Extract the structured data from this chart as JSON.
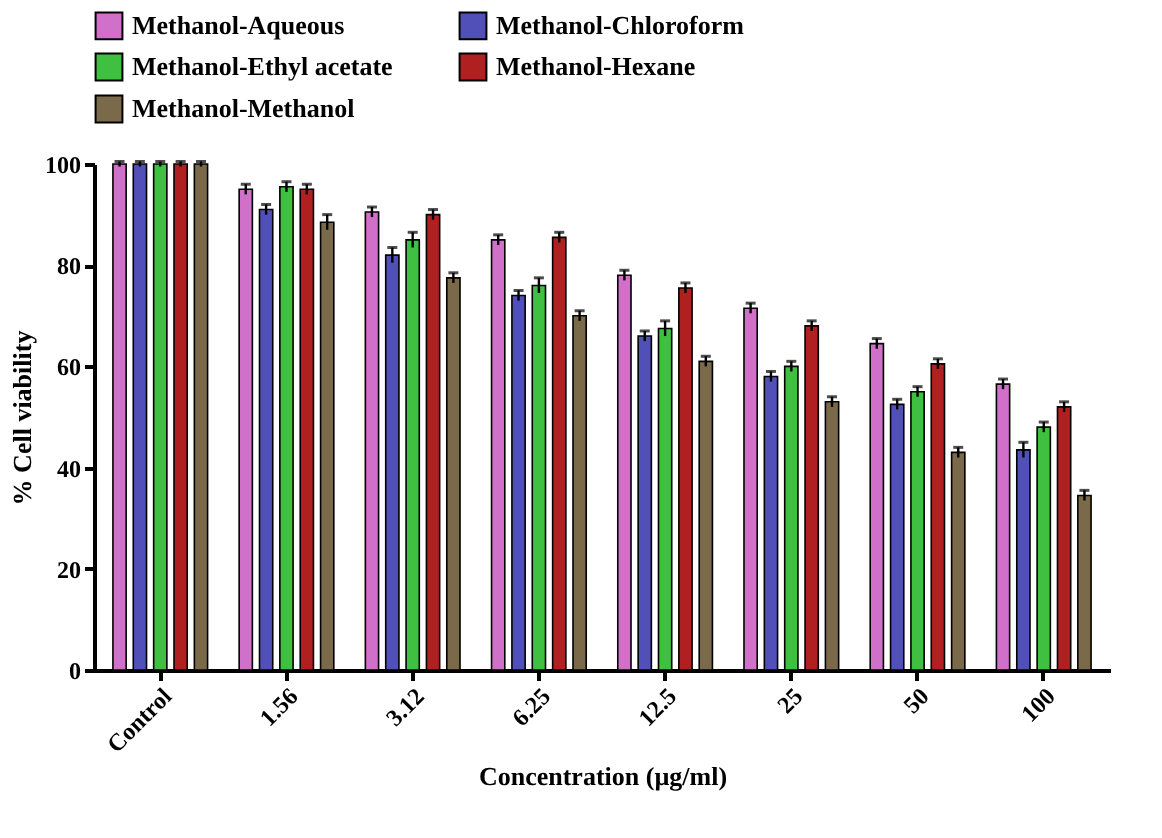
{
  "chart_data": {
    "type": "bar",
    "xlabel": "Concentration (µg/ml)",
    "ylabel": "% Cell viability",
    "categories": [
      "Control",
      "1.56",
      "3.12",
      "6.25",
      "12.5",
      "25",
      "50",
      "100"
    ],
    "series": [
      {
        "name": "Methanol-Aqueous",
        "color": "#d070c8",
        "values": [
          100,
          95,
          90.5,
          85,
          78,
          71.5,
          64.5,
          56.5
        ],
        "errors": [
          0.5,
          1,
          1,
          1,
          1,
          1,
          1,
          1
        ]
      },
      {
        "name": "Methanol-Chloroform",
        "color": "#5050b8",
        "values": [
          100,
          91,
          82,
          74,
          66,
          58,
          52.5,
          43.5
        ],
        "errors": [
          0.5,
          1,
          1.5,
          1,
          1,
          1,
          1,
          1.5
        ]
      },
      {
        "name": "Methanol-Ethyl acetate",
        "color": "#40c040",
        "values": [
          100,
          95.5,
          85,
          76,
          67.5,
          60,
          55,
          48
        ],
        "errors": [
          0.5,
          1,
          1.5,
          1.5,
          1.5,
          1,
          1,
          1
        ]
      },
      {
        "name": "Methanol-Hexane",
        "color": "#b02020",
        "values": [
          100,
          95,
          90,
          85.5,
          75.5,
          68,
          60.5,
          52
        ],
        "errors": [
          0.5,
          1,
          1,
          1,
          1,
          1,
          1,
          1
        ]
      },
      {
        "name": "Methanol-Methanol",
        "color": "#7a6a4a",
        "values": [
          100,
          88.5,
          77.5,
          70,
          61,
          53,
          43,
          34.5
        ],
        "errors": [
          0.5,
          1.5,
          1,
          1,
          1,
          1,
          1,
          1
        ]
      }
    ],
    "ylim": [
      0,
      100
    ],
    "yticks": [
      0,
      20,
      40,
      60,
      80,
      100
    ],
    "grid": false,
    "legend": "top"
  }
}
